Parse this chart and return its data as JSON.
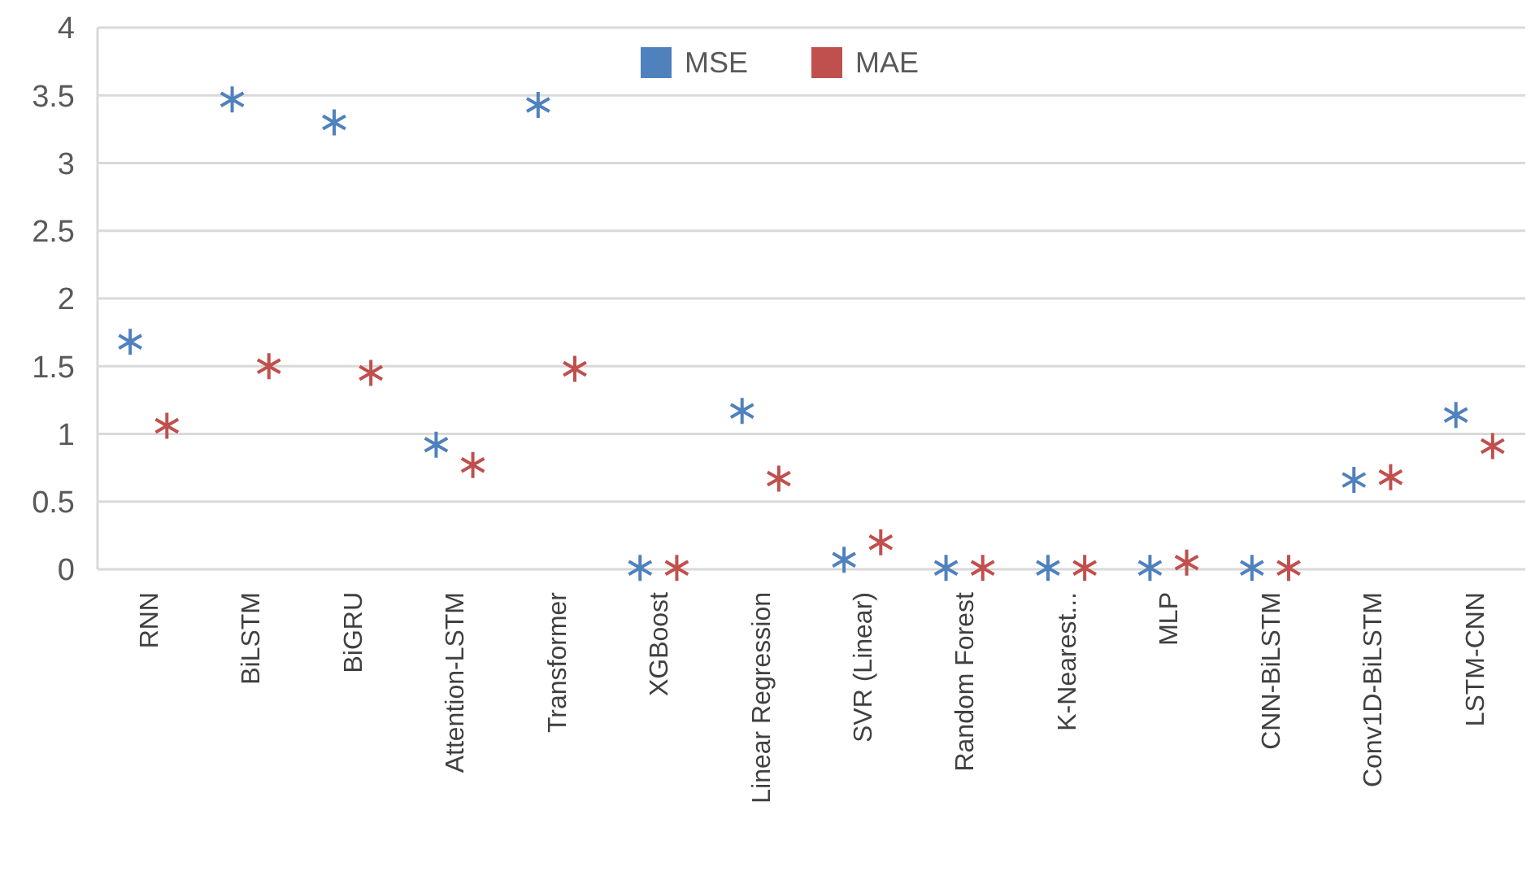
{
  "chart_data": {
    "type": "scatter",
    "categories": [
      "RNN",
      "BiLSTM",
      "BiGRU",
      "Attention-LSTM",
      "Transformer",
      "XGBoost",
      "Linear Regression",
      "SVR (Linear)",
      "Random Forest",
      "K-Nearest...",
      "MLP",
      "CNN-BiLSTM",
      "Conv1D-BiLSTM",
      "LSTM-CNN"
    ],
    "series": [
      {
        "name": "MSE",
        "color": "#4f81bd",
        "values": [
          1.68,
          3.47,
          3.3,
          0.92,
          3.43,
          0.01,
          1.17,
          0.07,
          0.01,
          0.01,
          0.01,
          0.01,
          0.66,
          1.14
        ]
      },
      {
        "name": "MAE",
        "color": "#c0504d",
        "values": [
          1.06,
          1.5,
          1.45,
          0.77,
          1.48,
          0.01,
          0.67,
          0.2,
          0.01,
          0.01,
          0.05,
          0.01,
          0.68,
          0.91
        ]
      }
    ],
    "ylim": [
      0,
      4
    ],
    "yticks": [
      0,
      0.5,
      1,
      1.5,
      2,
      2.5,
      3,
      3.5,
      4
    ],
    "grid": "y",
    "legend": "top",
    "marker": "cross"
  }
}
